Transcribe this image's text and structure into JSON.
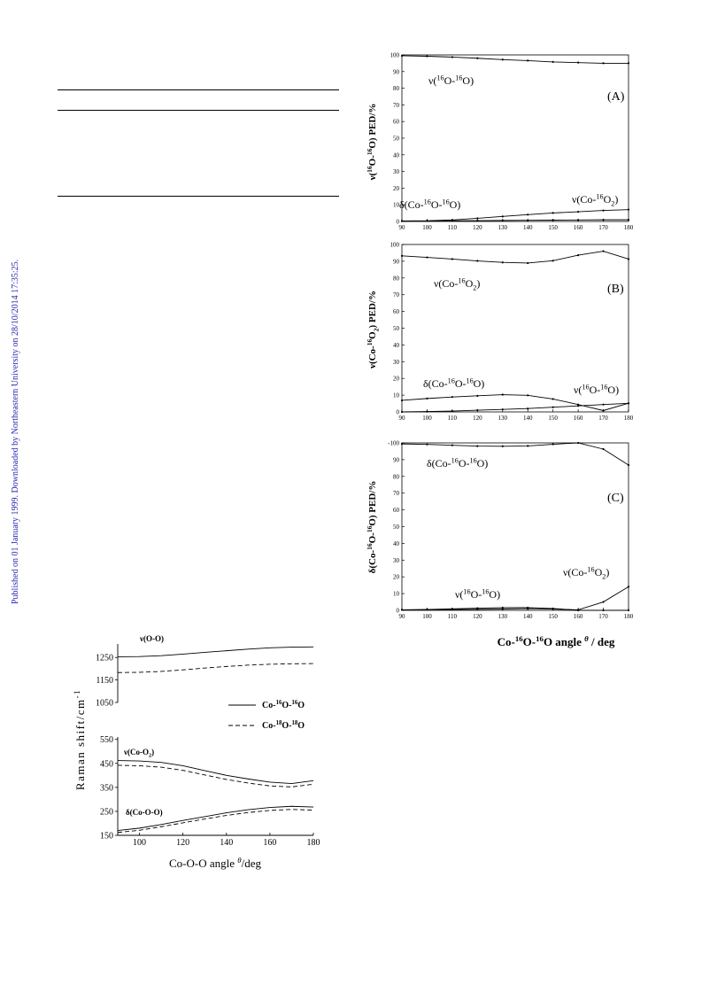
{
  "sidebar_text": "Published on 01 January 1999. Downloaded by Northeastern University on 28/10/2014 17:35:25.",
  "ped_figure": {
    "xlabel_parts": [
      "Co-",
      "16",
      "O-",
      "16",
      "O angle ",
      "θ",
      " / deg"
    ],
    "x_ticks": [
      "90",
      "100",
      "110",
      "120",
      "130",
      "140",
      "150",
      "160",
      "170",
      "180"
    ]
  },
  "chart_data": [
    {
      "type": "line",
      "panel_label": "(A)",
      "ylabel_parts": [
        "ν(",
        "16",
        "O-",
        "16",
        "O) PED/%"
      ],
      "x": [
        90,
        100,
        110,
        120,
        130,
        140,
        150,
        160,
        170,
        180
      ],
      "ylim": [
        0,
        100
      ],
      "y_ticks": [
        "0",
        "10",
        "20",
        "30",
        "40",
        "50",
        "60",
        "70",
        "80",
        "90",
        "100"
      ],
      "series": [
        {
          "label_parts": [
            "ν(",
            "16",
            "O-",
            "16",
            "O)"
          ],
          "values": [
            99.5,
            99.2,
            98.7,
            98.0,
            97.2,
            96.6,
            95.8,
            95.4,
            95.0,
            95.0
          ]
        },
        {
          "label_parts": [
            "δ(Co-",
            "16",
            "O-",
            "16",
            "O)"
          ],
          "values": [
            0.3,
            0.4,
            0.9,
            1.9,
            3.0,
            4.1,
            5.1,
            5.8,
            6.6,
            7.1
          ]
        },
        {
          "label_parts": [
            "ν(Co-",
            "16",
            "O",
            "2",
            ")"
          ],
          "values": [
            0.2,
            0.3,
            0.4,
            0.5,
            0.6,
            0.7,
            0.8,
            0.9,
            1.0,
            1.0
          ]
        }
      ]
    },
    {
      "type": "line",
      "panel_label": "(B)",
      "ylabel_parts": [
        "ν(Co-",
        "16",
        "O",
        "2",
        ") PED/%"
      ],
      "x": [
        90,
        100,
        110,
        120,
        130,
        140,
        150,
        160,
        170,
        180
      ],
      "ylim": [
        0,
        100
      ],
      "y_ticks": [
        "0",
        "10",
        "20",
        "30",
        "40",
        "50",
        "60",
        "70",
        "80",
        "90",
        "100"
      ],
      "series": [
        {
          "label_parts": [
            "ν(Co-",
            "16",
            "O",
            "2",
            ")"
          ],
          "values": [
            93.2,
            92.3,
            91.3,
            90.2,
            89.3,
            88.9,
            90.3,
            93.6,
            96.0,
            91.3
          ]
        },
        {
          "label_parts": [
            "δ(Co-",
            "16",
            "O-",
            "16",
            "O)"
          ],
          "values": [
            6.9,
            8.0,
            8.9,
            9.6,
            10.3,
            9.9,
            7.7,
            4.4,
            0.8,
            5.2
          ]
        },
        {
          "label_parts": [
            "ν(",
            "16",
            "O-",
            "16",
            "O)"
          ],
          "values": [
            0.0,
            0.2,
            0.5,
            1.0,
            1.5,
            2.0,
            2.8,
            3.6,
            4.4,
            5.1
          ]
        }
      ]
    },
    {
      "type": "line",
      "panel_label": "(C)",
      "ylabel_parts": [
        "δ(Co-",
        "16",
        "O-",
        "16",
        "O) PED/%"
      ],
      "x": [
        90,
        100,
        110,
        120,
        130,
        140,
        150,
        160,
        170,
        180
      ],
      "ylim": [
        0,
        100
      ],
      "y_ticks": [
        "0",
        "10",
        "20",
        "30",
        "40",
        "50",
        "60",
        "70",
        "80",
        "90",
        "100"
      ],
      "y_tick_top_text": "-100",
      "series": [
        {
          "label_parts": [
            "δ(Co-",
            "16",
            "O-",
            "16",
            "O)"
          ],
          "values": [
            99.4,
            99.1,
            98.6,
            98.1,
            98.0,
            98.2,
            99.2,
            100.0,
            96.3,
            86.8
          ]
        },
        {
          "label_parts": [
            "ν(Co-",
            "16",
            "O",
            "2",
            ")"
          ],
          "values": [
            0.3,
            0.4,
            0.5,
            0.6,
            0.8,
            1.0,
            0.8,
            0.3,
            5.0,
            14.1
          ]
        },
        {
          "label_parts": [
            "ν(",
            "16",
            "O-",
            "16",
            "O)"
          ],
          "values": [
            0.3,
            0.5,
            0.9,
            1.3,
            1.6,
            1.6,
            1.1,
            0.0,
            0.0,
            0.0
          ]
        }
      ]
    },
    {
      "type": "line",
      "xlabel_parts": [
        "Co-O-O angle ",
        "θ",
        "/deg"
      ],
      "ylabel": "Raman shift/cm",
      "ylabel_sup": "-1",
      "xlim": [
        90,
        180
      ],
      "x_ticks": [
        "100",
        "120",
        "140",
        "160",
        "180"
      ],
      "upper_y_ticks": [
        "1050",
        "1150",
        "1250"
      ],
      "lower_y_ticks": [
        "150",
        "250",
        "350",
        "450",
        "550"
      ],
      "upper_ylim": [
        1050,
        1310
      ],
      "lower_ylim": [
        150,
        560
      ],
      "mode_labels": [
        {
          "text": "ν(O-O)"
        },
        {
          "parts": [
            "ν(Co-O",
            "2",
            ")"
          ]
        },
        {
          "text": "δ(Co-O-O)"
        }
      ],
      "legend": [
        {
          "parts": [
            "Co-",
            "16",
            "O-",
            "16",
            "O"
          ],
          "style": "solid"
        },
        {
          "parts": [
            "Co-",
            "18",
            "O-",
            "18",
            "O"
          ],
          "style": "dashed"
        }
      ],
      "x": [
        90,
        100,
        110,
        120,
        130,
        140,
        150,
        160,
        170,
        180
      ],
      "series": [
        {
          "mode": "ν(O-O)",
          "isotope": "16",
          "values": [
            1253,
            1254,
            1258,
            1265,
            1273,
            1280,
            1287,
            1293,
            1296,
            1297
          ]
        },
        {
          "mode": "ν(O-O)",
          "isotope": "18",
          "values": [
            1183,
            1184,
            1188,
            1195,
            1203,
            1210,
            1216,
            1220,
            1222,
            1223
          ]
        },
        {
          "mode": "ν(Co-O2)",
          "isotope": "16",
          "values": [
            462,
            460,
            454,
            440,
            420,
            400,
            385,
            372,
            366,
            378
          ]
        },
        {
          "mode": "ν(Co-O2)",
          "isotope": "18",
          "values": [
            442,
            440,
            434,
            421,
            402,
            383,
            368,
            356,
            352,
            363
          ]
        },
        {
          "mode": "δ(Co-O-O)",
          "isotope": "16",
          "values": [
            170,
            180,
            195,
            212,
            228,
            244,
            257,
            266,
            271,
            268
          ]
        },
        {
          "mode": "δ(Co-O-O)",
          "isotope": "18",
          "values": [
            162,
            171,
            186,
            202,
            218,
            233,
            245,
            254,
            258,
            255
          ]
        }
      ]
    }
  ]
}
